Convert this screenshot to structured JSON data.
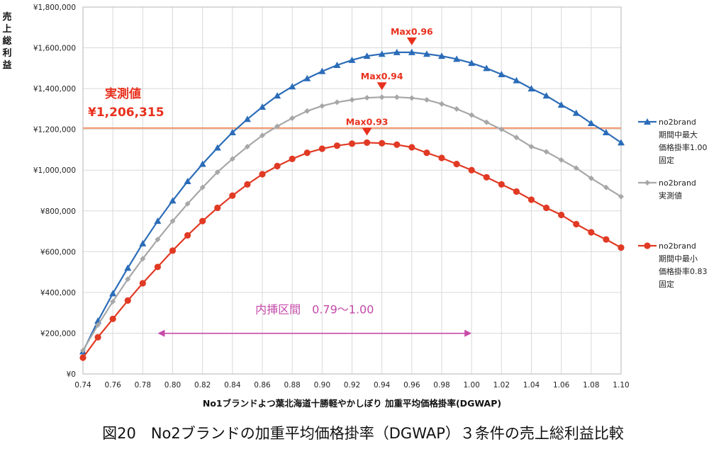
{
  "caption": "図20　No2ブランドの加重平均価格掛率（DGWAP）３条件の売上総利益比較",
  "chart_data": {
    "type": "line",
    "ylabel": "売上総利益",
    "xlabel": "No1ブランドよつ葉北海道十勝軽やかしぼり 加重平均価格掛率(DGWAP)",
    "xlim": [
      0.74,
      1.1
    ],
    "ylim": [
      0,
      1800000
    ],
    "x_ticks": [
      "0.74",
      "0.76",
      "0.78",
      "0.80",
      "0.82",
      "0.84",
      "0.86",
      "0.88",
      "0.90",
      "0.92",
      "0.94",
      "0.96",
      "0.98",
      "1.00",
      "1.02",
      "1.04",
      "1.06",
      "1.08",
      "1.10"
    ],
    "y_ticks": [
      "¥0",
      "¥200,000",
      "¥400,000",
      "¥600,000",
      "¥800,000",
      "¥1,000,000",
      "¥1,200,000",
      "¥1,400,000",
      "¥1,600,000",
      "¥1,800,000"
    ],
    "grid": true,
    "legend_position": "right",
    "x": [
      0.74,
      0.75,
      0.76,
      0.77,
      0.78,
      0.79,
      0.8,
      0.81,
      0.82,
      0.83,
      0.84,
      0.85,
      0.86,
      0.87,
      0.88,
      0.89,
      0.9,
      0.91,
      0.92,
      0.93,
      0.94,
      0.95,
      0.96,
      0.97,
      0.98,
      0.99,
      1.0,
      1.01,
      1.02,
      1.03,
      1.04,
      1.05,
      1.06,
      1.07,
      1.08,
      1.09,
      1.1
    ],
    "series": [
      {
        "name": "no2brand",
        "legend_lines": [
          "no2brand",
          "期間中最大",
          "価格掛率1.00",
          "固定"
        ],
        "color": "#2b6cb8",
        "marker": "triangle",
        "values": [
          110000,
          260000,
          395000,
          520000,
          640000,
          750000,
          850000,
          945000,
          1030000,
          1110000,
          1185000,
          1250000,
          1310000,
          1365000,
          1410000,
          1450000,
          1485000,
          1515000,
          1540000,
          1560000,
          1570000,
          1578000,
          1578000,
          1570000,
          1560000,
          1545000,
          1525000,
          1500000,
          1470000,
          1440000,
          1400000,
          1365000,
          1320000,
          1280000,
          1230000,
          1185000,
          1135000
        ]
      },
      {
        "name": "no2brand",
        "legend_lines": [
          "no2brand",
          "実測値"
        ],
        "color": "#a7a7a7",
        "marker": "diamond",
        "values": [
          115000,
          240000,
          355000,
          465000,
          565000,
          660000,
          750000,
          835000,
          915000,
          990000,
          1055000,
          1115000,
          1170000,
          1215000,
          1255000,
          1290000,
          1315000,
          1333000,
          1345000,
          1355000,
          1358000,
          1358000,
          1354000,
          1345000,
          1325000,
          1300000,
          1270000,
          1235000,
          1200000,
          1160000,
          1115000,
          1090000,
          1050000,
          1010000,
          960000,
          915000,
          870000
        ]
      },
      {
        "name": "no2brand",
        "legend_lines": [
          "no2brand",
          "期間中最小",
          "価格掛率0.83",
          "固定"
        ],
        "color": "#e13a24",
        "marker": "circle",
        "values": [
          80000,
          180000,
          270000,
          360000,
          445000,
          525000,
          605000,
          680000,
          750000,
          815000,
          875000,
          930000,
          980000,
          1020000,
          1055000,
          1085000,
          1105000,
          1120000,
          1130000,
          1135000,
          1132000,
          1125000,
          1112000,
          1085000,
          1060000,
          1030000,
          1000000,
          965000,
          930000,
          895000,
          855000,
          815000,
          780000,
          735000,
          695000,
          660000,
          620000
        ]
      }
    ],
    "reference_line": {
      "value": 1206315,
      "label": "実測値",
      "value_label": "¥1,206,315",
      "color": "#f07f4f"
    },
    "max_annotations": [
      {
        "label": "Max0.96",
        "x": 0.96,
        "y": 1578000
      },
      {
        "label": "Max0.94",
        "x": 0.94,
        "y": 1358000
      },
      {
        "label": "Max0.93",
        "x": 0.93,
        "y": 1135000
      }
    ],
    "interpolation_range": {
      "label": "内挿区間　0.79～1.00",
      "from": 0.79,
      "to": 1.0,
      "y": 300000,
      "color": "#c54aa8"
    }
  }
}
